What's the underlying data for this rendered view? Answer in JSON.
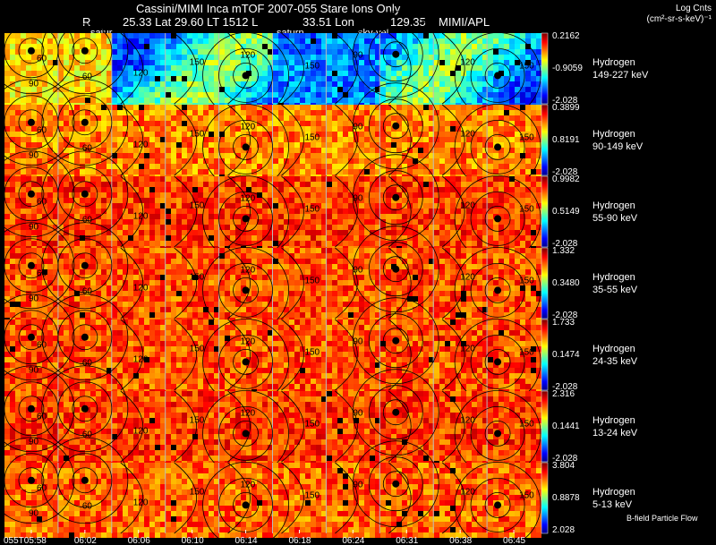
{
  "chart_data": {
    "type": "heatmap",
    "title": "Cassini/MIMI Inca mTOF  2007-055   Stare    Ions Only",
    "header": {
      "r_label": "R",
      "position_line": "25.33 Lat 29.60 LT 1512 L",
      "lon_line": "33.51 Lon",
      "lon_value": "129.35",
      "institution": "MIMI/APL",
      "markers": [
        "satur",
        "saturn",
        "sky-vel"
      ]
    },
    "colorbar_label": [
      "Log Cnts",
      "(cm²-sr-s-keV)⁻¹"
    ],
    "species": "Hydrogen",
    "bands": [
      {
        "species": "Hydrogen",
        "energy": "149-227 keV",
        "max": "0.2162",
        "mid": "-0.9059",
        "min": "-2.028",
        "level": 0.25
      },
      {
        "species": "Hydrogen",
        "energy": "90-149 keV",
        "max": "0.3899",
        "mid": "0.8191",
        "min": "-2.028",
        "level": 0.75
      },
      {
        "species": "Hydrogen",
        "energy": "55-90 keV",
        "max": "0.9982",
        "mid": "0.5149",
        "min": "-2.028",
        "level": 0.82
      },
      {
        "species": "Hydrogen",
        "energy": "35-55 keV",
        "max": "1.332",
        "mid": "0.3480",
        "min": "-2.028",
        "level": 0.8
      },
      {
        "species": "Hydrogen",
        "energy": "24-35 keV",
        "max": "1.733",
        "mid": "0.1474",
        "min": "-2.028",
        "level": 0.8
      },
      {
        "species": "Hydrogen",
        "energy": "13-24 keV",
        "max": "2.316",
        "mid": "0.1441",
        "min": "-2.028",
        "level": 0.82
      },
      {
        "species": "Hydrogen",
        "energy": "5-13 keV",
        "max": "3.804",
        "mid": "0.8878",
        "min": "2.028",
        "level": 0.78
      }
    ],
    "time_ticks": [
      "055T05:58",
      "06:02",
      "06:06",
      "06:10",
      "06:14",
      "06:18",
      "06:24",
      "06:31",
      "06:38",
      "06:45"
    ],
    "contour_levels": [
      "30",
      "60",
      "90",
      "120",
      "150"
    ],
    "footer": "B-field Particle Flow"
  }
}
